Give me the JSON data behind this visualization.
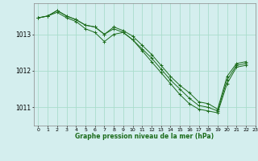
{
  "title": "Graphe pression niveau de la mer (hPa)",
  "background_color": "#d4eeee",
  "grid_color": "#aaddcc",
  "line_color": "#1a6b1a",
  "xlim": [
    -0.5,
    23
  ],
  "ylim": [
    1010.5,
    1013.85
  ],
  "yticks": [
    1011,
    1012,
    1013
  ],
  "xticks": [
    0,
    1,
    2,
    3,
    4,
    5,
    6,
    7,
    8,
    9,
    10,
    11,
    12,
    13,
    14,
    15,
    16,
    17,
    18,
    19,
    20,
    21,
    22,
    23
  ],
  "figsize": [
    3.2,
    2.0
  ],
  "dpi": 100,
  "series": [
    [
      1013.45,
      1013.5,
      1013.65,
      1013.5,
      1013.4,
      1013.25,
      1013.2,
      1013.0,
      1013.2,
      1013.1,
      1012.95,
      1012.7,
      1012.45,
      1012.15,
      1011.85,
      1011.6,
      1011.4,
      1011.15,
      1011.1,
      1010.95,
      1011.85,
      1012.2,
      1012.25
    ],
    [
      1013.45,
      1013.5,
      1013.65,
      1013.5,
      1013.4,
      1013.25,
      1013.2,
      1013.0,
      1013.15,
      1013.05,
      1012.85,
      1012.6,
      1012.35,
      1012.05,
      1011.75,
      1011.5,
      1011.25,
      1011.05,
      1011.0,
      1010.9,
      1011.75,
      1012.15,
      1012.2
    ],
    [
      1013.45,
      1013.5,
      1013.6,
      1013.45,
      1013.35,
      1013.15,
      1013.05,
      1012.8,
      1013.0,
      1013.05,
      1012.85,
      1012.55,
      1012.25,
      1011.95,
      1011.65,
      1011.35,
      1011.1,
      1010.95,
      1010.9,
      1010.85,
      1011.65,
      1012.1,
      1012.15
    ]
  ]
}
